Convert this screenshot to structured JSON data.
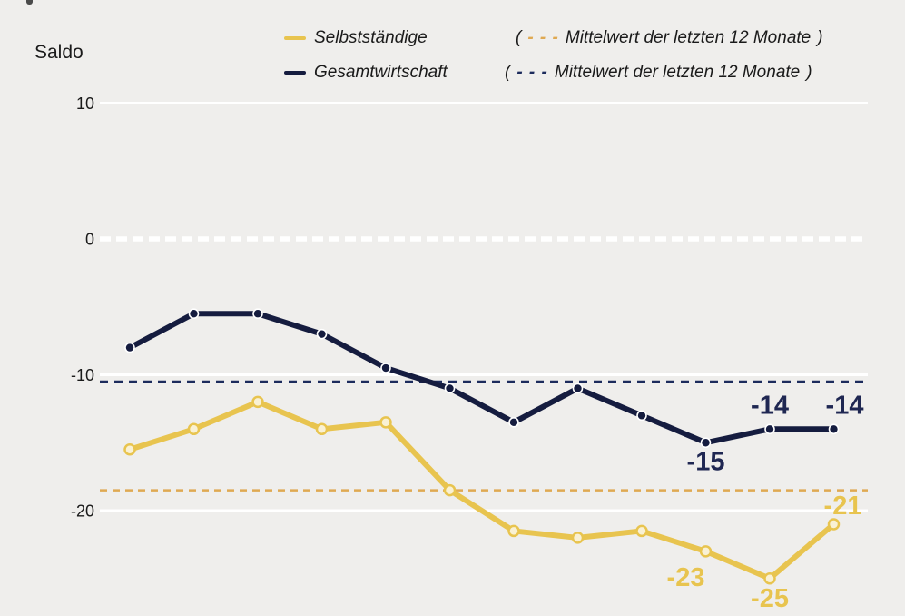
{
  "axis_title": "Saldo",
  "legend": {
    "mean_note": {
      "open": "(",
      "dashes": "- - -",
      "text": "Mittelwert der letzten 12 Monate",
      "close": ")"
    }
  },
  "colors": {
    "background": "#EFEEEC",
    "grid_white": "#FFFFFF",
    "selbststaendige_line": "#E8C44F",
    "selbststaendige_mean": "#DFA952",
    "selbststaendige_marker_fill": "#F9F1D4",
    "gesamtwirtschaft_line": "#151C3F",
    "gesamtwirtschaft_mean": "#1C2B5C",
    "gesamtwirtschaft_label": "#1F2752",
    "text": "#1A1A1A"
  },
  "chart_data": {
    "type": "line",
    "title": "",
    "xlabel": "",
    "ylabel": "Saldo",
    "x_tick_labels_visible": false,
    "points_per_series": 12,
    "y_ticks": [
      10,
      0,
      -10,
      -20
    ],
    "ylim": [
      -27.8,
      10.5
    ],
    "grid": "horizontal-white-lines",
    "zero_line_style": "thick-white-dashed",
    "legend_position": "top",
    "series": [
      {
        "name": "Selbstständige",
        "color": "#E8C44F",
        "mean_color": "#DFA952",
        "mean_of_last_12_months": -18.5,
        "values": [
          -15.5,
          -14,
          -12,
          -14,
          -13.5,
          -18.5,
          -21.5,
          -22,
          -21.5,
          -23,
          -25,
          -21
        ],
        "point_labels": [
          null,
          null,
          null,
          null,
          null,
          null,
          null,
          null,
          null,
          "-23",
          "-25",
          "-21"
        ]
      },
      {
        "name": "Gesamtwirtschaft",
        "color": "#151C3F",
        "mean_color": "#1C2B5C",
        "mean_of_last_12_months": -10.5,
        "values": [
          -8,
          -5.5,
          -5.5,
          -7,
          -9.5,
          -11,
          -13.5,
          -11,
          -13,
          -15,
          -14,
          -14
        ],
        "point_labels": [
          null,
          null,
          null,
          null,
          null,
          null,
          null,
          null,
          null,
          "-15",
          "-14",
          "-14"
        ]
      }
    ]
  }
}
